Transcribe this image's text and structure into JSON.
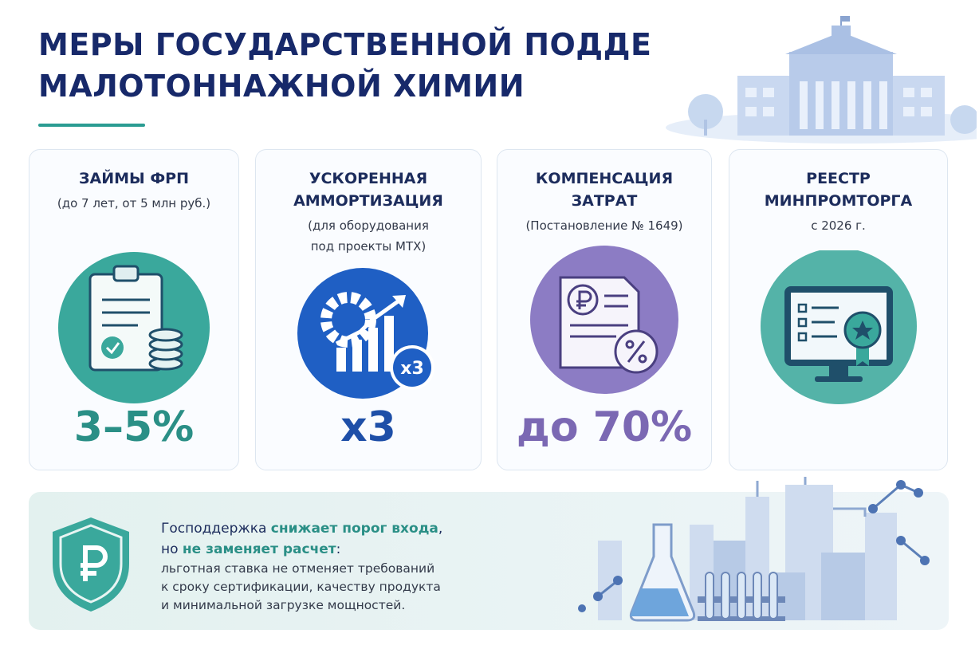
{
  "header": {
    "title": [
      "МЕРЫ ГОСУДАРСТВЕННОЙ ПОДДЕРЖКИ",
      "МАЛОТОННАЖНОЙ ХИМИИ"
    ]
  },
  "cards": [
    {
      "title": [
        "ЗАЙМЫ ФРП"
      ],
      "subtitle": [
        "(до 7 лет, от 5 млн руб.)"
      ],
      "value": "3–5%"
    },
    {
      "title": [
        "УСКОРЕННАЯ",
        "АММОРТИЗАЦИЯ"
      ],
      "subtitle": [
        "(для оборудования",
        "под проекты МТХ)"
      ],
      "icon_label": "x3",
      "value": "x3"
    },
    {
      "title": [
        "КОМПЕНСАЦИЯ",
        "ЗАТРАТ"
      ],
      "subtitle": [
        "(Постановление № 1649)"
      ],
      "value": "до 70%"
    },
    {
      "title": [
        "РЕЕСТР",
        "МИНПРОМТОРГА"
      ],
      "subtitle": [
        "с 2026 г."
      ]
    }
  ],
  "footer": {
    "line1": [
      "Господдержка ",
      "снижает порог входа",
      ","
    ],
    "line2": [
      "но ",
      "не заменяет расчет",
      ":"
    ],
    "details": [
      "льготная ставка не отменяет требований",
      "к сроку сертификации, качеству продукта",
      "и минимальной загрузке мощностей."
    ]
  }
}
